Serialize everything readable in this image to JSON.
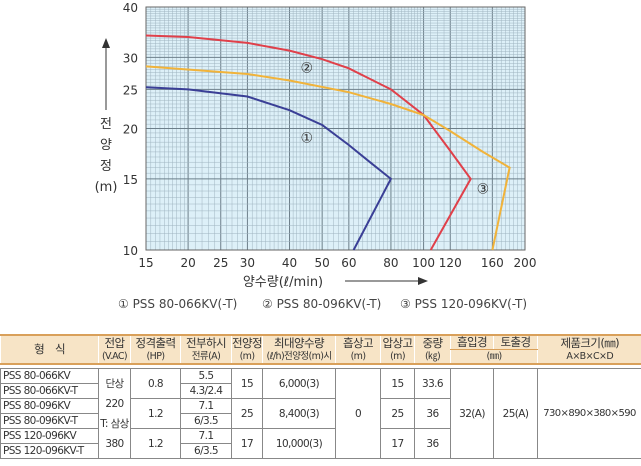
{
  "chart_data": {
    "type": "line",
    "xlabel": "양수량(ℓ/min)",
    "ylabel": "전양정 (m)",
    "xscale": "log",
    "yscale": "log",
    "xlim": [
      15,
      200
    ],
    "ylim": [
      10,
      40
    ],
    "xticks": [
      15,
      20,
      25,
      30,
      40,
      50,
      60,
      80,
      100,
      120,
      160,
      200
    ],
    "yticks": [
      10,
      15,
      20,
      25,
      30,
      40
    ],
    "grid": true,
    "series": [
      {
        "name": "① PSS 80-066KV(-T)",
        "label": "①",
        "color": "#3a3f96",
        "x": [
          15,
          20,
          30,
          40,
          50,
          60,
          70,
          80,
          62
        ],
        "y": [
          25.3,
          25,
          24,
          22.2,
          20.4,
          18.2,
          16.4,
          15,
          10
        ],
        "label_at": [
          45,
          19
        ]
      },
      {
        "name": "② PSS 80-096KV(-T)",
        "label": "②",
        "color": "#e0404a",
        "x": [
          15,
          20,
          30,
          40,
          50,
          60,
          80,
          100,
          120,
          138,
          105
        ],
        "y": [
          34,
          33.7,
          32.6,
          31.2,
          29.7,
          28.2,
          25,
          21.6,
          17.6,
          15,
          10
        ],
        "label_at": [
          45,
          28.3
        ]
      },
      {
        "name": "③ PSS 120-096KV(-T)",
        "label": "③",
        "color": "#f1b33a",
        "x": [
          15,
          30,
          40,
          60,
          80,
          100,
          120,
          150,
          180,
          160
        ],
        "y": [
          28.5,
          27.3,
          26.3,
          24.6,
          23,
          21.6,
          19.7,
          17.5,
          16,
          10
        ],
        "label_at": [
          150,
          14.2
        ]
      }
    ],
    "legend": "bottom"
  },
  "table": {
    "headers": [
      {
        "main": "형　식",
        "sub": ""
      },
      {
        "main": "전압",
        "sub": "(V.AC)"
      },
      {
        "main": "정격출력",
        "sub": "(HP)"
      },
      {
        "main": "전부하시",
        "sub": "전류(A)"
      },
      {
        "main": "전양정",
        "sub": "(m)"
      },
      {
        "main": "최대양수량",
        "sub": "(ℓ/h)전양정(m)시"
      },
      {
        "main": "흡상고",
        "sub": "(m)"
      },
      {
        "main": "압상고",
        "sub": "(m)"
      },
      {
        "main": "중량",
        "sub": "(㎏)"
      },
      {
        "main": "흡입경",
        "sub": ""
      },
      {
        "main": "토출경",
        "sub": ""
      },
      {
        "main": "제품크기(㎜)",
        "sub": "A×B×C×D"
      }
    ],
    "bore_unit": "(㎜)",
    "models": [
      "PSS 80-066KV",
      "PSS 80-066KV-T",
      "PSS 80-096KV",
      "PSS 80-096KV-T",
      "PSS 120-096KV",
      "PSS 120-096KV-T"
    ],
    "voltage": [
      "단상220",
      "T: 삼상",
      "380"
    ],
    "groups": [
      {
        "hp": "0.8",
        "amp1": "5.5",
        "amp2": "4.3/2.4",
        "head": "15",
        "flow": "6,000(3)",
        "press": "15",
        "weight": "33.6"
      },
      {
        "hp": "1.2",
        "amp1": "7.1",
        "amp2": "6/3.5",
        "head": "25",
        "flow": "8,400(3)",
        "press": "25",
        "weight": "36"
      },
      {
        "hp": "1.2",
        "amp1": "7.1",
        "amp2": "6/3.5",
        "head": "17",
        "flow": "10,000(3)",
        "press": "17",
        "weight": "36"
      }
    ],
    "suction_height": "0",
    "inlet": "32(A)",
    "outlet": "25(A)",
    "size": "730×890×380×590"
  }
}
